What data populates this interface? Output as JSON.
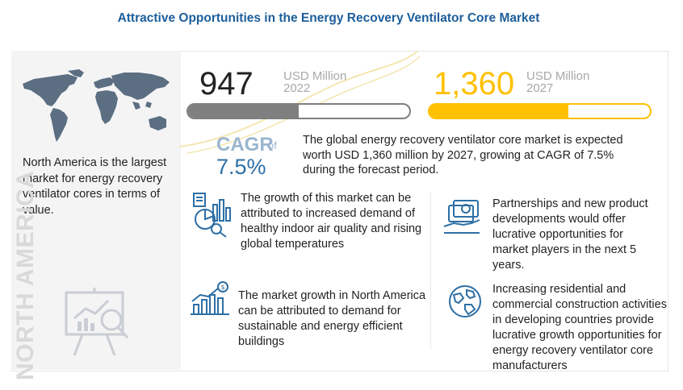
{
  "title": "Attractive Opportunities in the Energy Recovery Ventilator Core Market",
  "left_panel": {
    "region_text": "North America is the largest market for energy recovery ventilator cores in terms of value.",
    "vertical_label": "NORTH AMERICA"
  },
  "market_2022": {
    "value": "947",
    "unit": "USD Million",
    "year": "2022",
    "bar_fill": 0.5
  },
  "market_2027": {
    "value": "1,360",
    "unit": "USD Million",
    "year": "2027",
    "bar_fill": 0.63
  },
  "cagr": {
    "label": "CAGR",
    "of": "of",
    "value": "7.5%"
  },
  "summary": "The global energy recovery ventilator core market is expected worth USD 1,360 million by 2027, growing at CAGR of 7.5% during the forecast period.",
  "points": [
    {
      "text": "The growth of this market can be attributed to increased demand of healthy indoor air quality and rising global temperatures",
      "icon": "analytics-icon"
    },
    {
      "text": "Partnerships and new product developments would offer lucrative opportunities for market players in the next 5 years.",
      "icon": "money-icon"
    },
    {
      "text": "The market growth in North America can be attributed to demand for sustainable and energy efficient buildings",
      "icon": "growth-chart-icon"
    },
    {
      "text": "Increasing residential and commercial construction activities in developing countries provide lucrative growth opportunities for energy recovery ventilator core manufacturers",
      "icon": "globe-icon"
    }
  ],
  "colors": {
    "title": "#1d5e9a",
    "gray_bar": "#7f7f7f",
    "yellow": "#ffc000",
    "cagr_blue": "#2d6fa5"
  }
}
